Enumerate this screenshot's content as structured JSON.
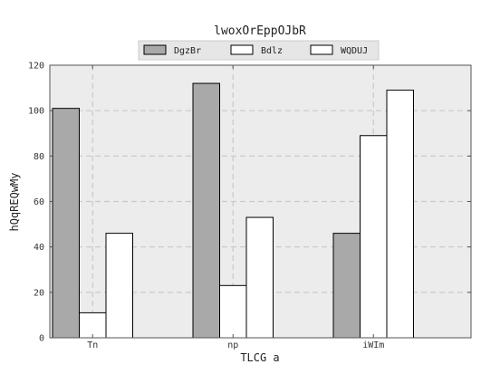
{
  "chart_data": {
    "type": "bar",
    "title": "lwoxOrEppOJbR",
    "xlabel": "TLCG  a",
    "ylabel": "hQqREQwMy",
    "categories": [
      "Tn",
      "np",
      "iWIm"
    ],
    "ylim": [
      0,
      120
    ],
    "yticks": [
      0,
      20,
      40,
      60,
      80,
      100,
      120
    ],
    "grid": true,
    "legend_position": "top-center",
    "series": [
      {
        "name": "DgzBr",
        "values": [
          101,
          112,
          46
        ],
        "color": "#a9a9a9"
      },
      {
        "name": "Bdlz",
        "values": [
          11,
          23,
          89
        ],
        "color": "#ffffff"
      },
      {
        "name": "WQDUJ",
        "values": [
          46,
          53,
          109
        ],
        "color": "#ffffff"
      }
    ],
    "plot_background": "#ececec"
  }
}
